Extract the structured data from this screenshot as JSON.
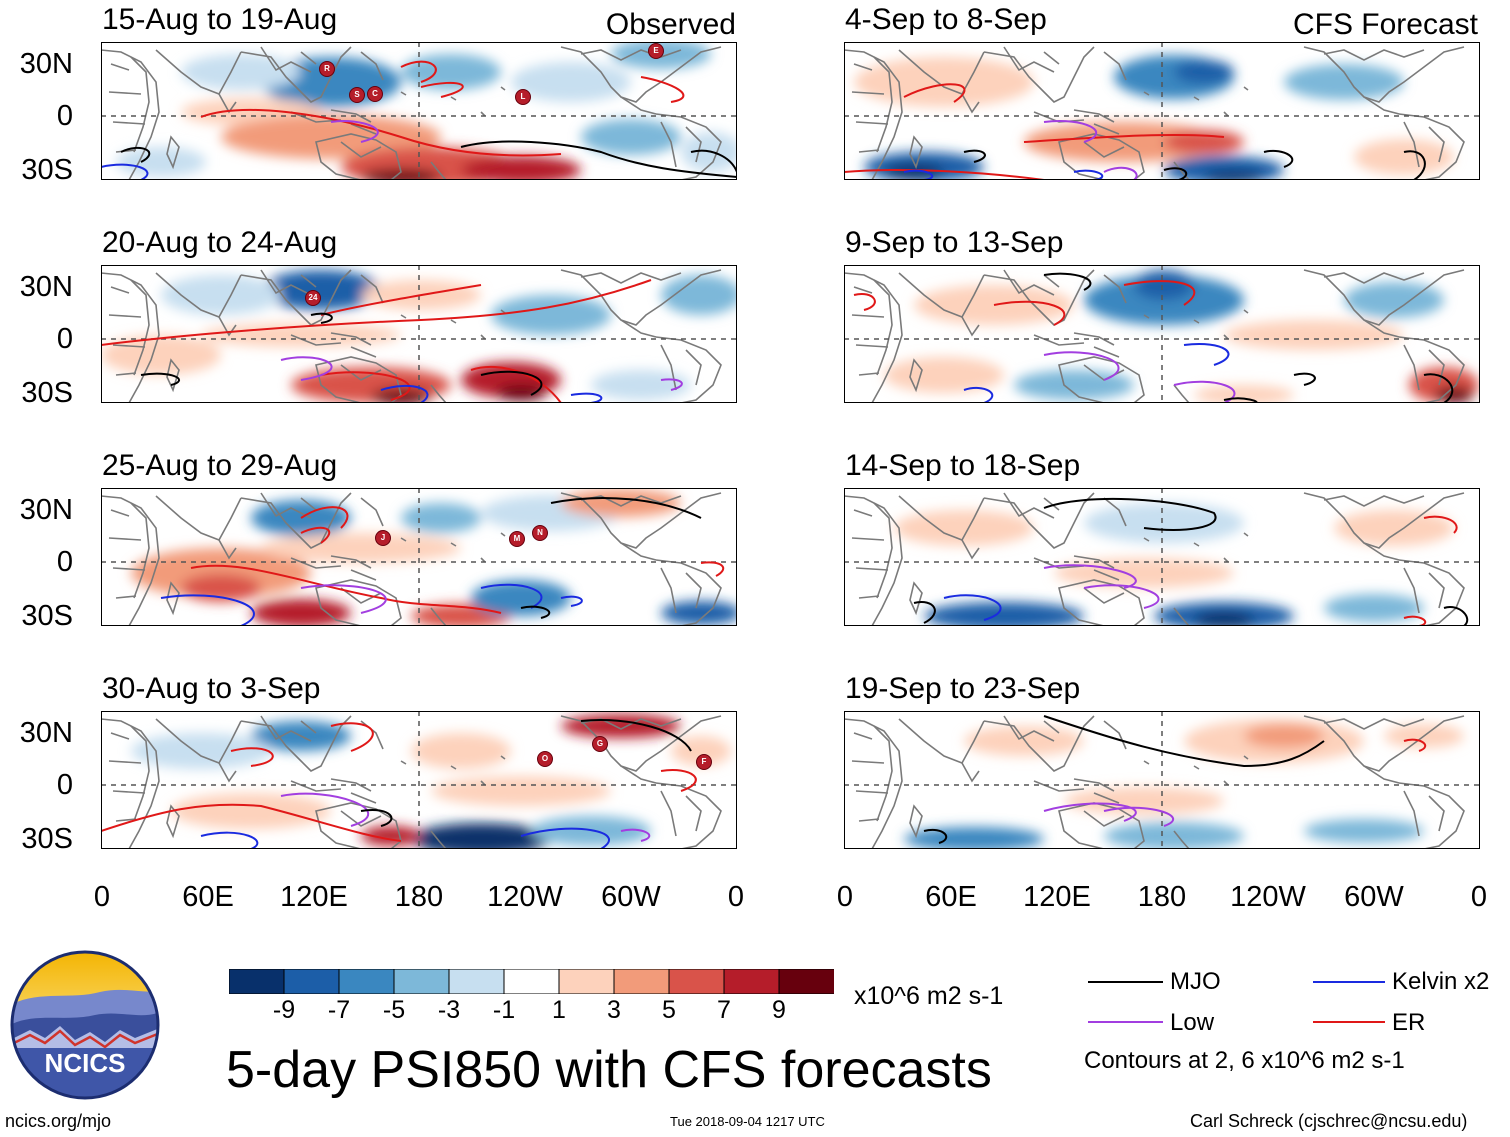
{
  "headers": {
    "left": "Observed",
    "right": "CFS Forecast"
  },
  "panels": {
    "observed": [
      "15-Aug to 19-Aug",
      "20-Aug to 24-Aug",
      "25-Aug to 29-Aug",
      "30-Aug to 3-Sep"
    ],
    "forecast": [
      "4-Sep to 8-Sep",
      "9-Sep to 13-Sep",
      "14-Sep to 18-Sep",
      "19-Sep to 23-Sep"
    ]
  },
  "lat_labels": [
    "30N",
    "0",
    "30S"
  ],
  "lon_labels": [
    "0",
    "60E",
    "120E",
    "180",
    "120W",
    "60W",
    "0"
  ],
  "storm_markers": {
    "p1": [
      "R",
      "S",
      "C",
      "L",
      "E"
    ],
    "p2": [
      "24"
    ],
    "p3": [
      "J",
      "M",
      "N"
    ],
    "p4": [
      "O",
      "G",
      "F"
    ]
  },
  "colorbar": {
    "ticks": [
      "-9",
      "-7",
      "-5",
      "-3",
      "-1",
      "1",
      "3",
      "5",
      "7",
      "9"
    ],
    "colors": [
      "#08306b",
      "#1c5ea8",
      "#3a87c0",
      "#7db8d9",
      "#c7dff0",
      "#ffffff",
      "#fdd2bc",
      "#f29b7a",
      "#d9534a",
      "#b51d2a",
      "#67000d"
    ],
    "units": "x10^6 m2 s-1"
  },
  "legend": {
    "items": [
      {
        "label": "MJO",
        "color": "#000000"
      },
      {
        "label": "Kelvin x2",
        "color": "#1a2be0"
      },
      {
        "label": "Low",
        "color": "#a23ee0"
      },
      {
        "label": "ER",
        "color": "#e01818"
      }
    ],
    "note": "Contours at 2, 6 x10^6 m2 s-1"
  },
  "main_title": "5-day PSI850 with CFS forecasts",
  "logo_text": "NCICS",
  "footer": {
    "left": "ncics.org/mjo",
    "center": "Tue 2018-09-04 1217 UTC",
    "right": "Carl Schreck (cjschrec@ncsu.edu)"
  }
}
